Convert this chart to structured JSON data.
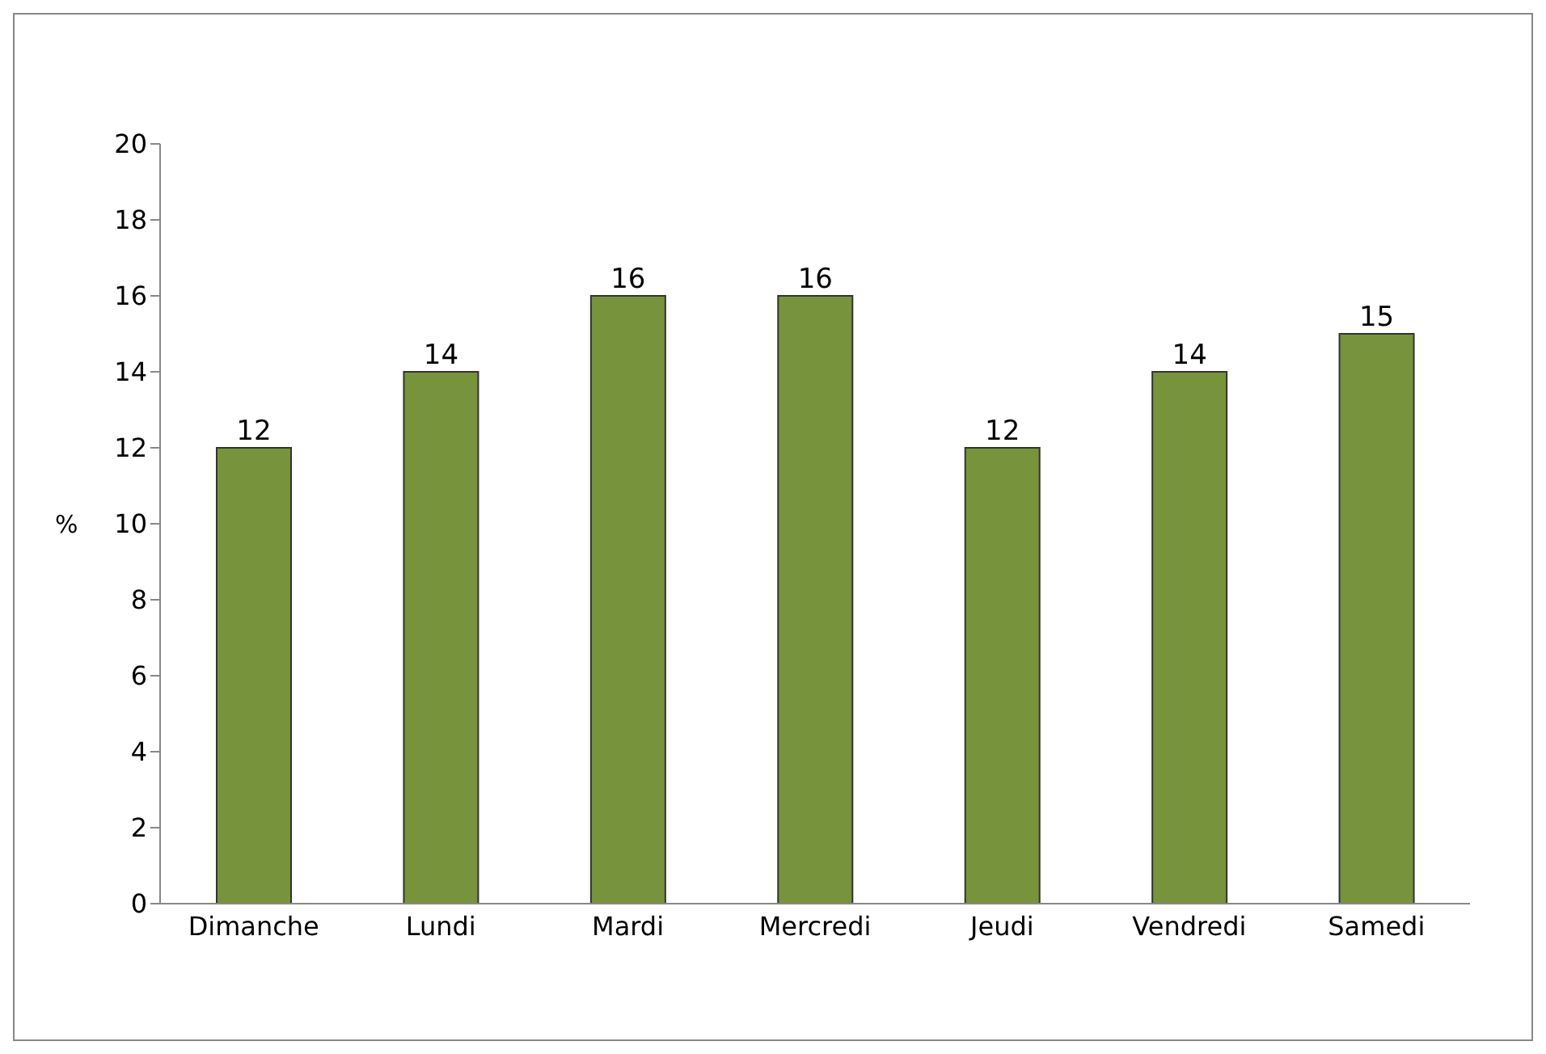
{
  "chart_data": {
    "type": "bar",
    "ylabel": "%",
    "categories": [
      "Dimanche",
      "Lundi",
      "Mardi",
      "Mercredi",
      "Jeudi",
      "Vendredi",
      "Samedi"
    ],
    "values": [
      12,
      14,
      16,
      16,
      12,
      14,
      15
    ],
    "color": "#77933c",
    "ylim": [
      0,
      20
    ],
    "yticks": [
      0,
      2,
      4,
      6,
      8,
      10,
      12,
      14,
      16,
      18,
      20
    ],
    "grid": false,
    "data_labels": true,
    "legend": false
  }
}
